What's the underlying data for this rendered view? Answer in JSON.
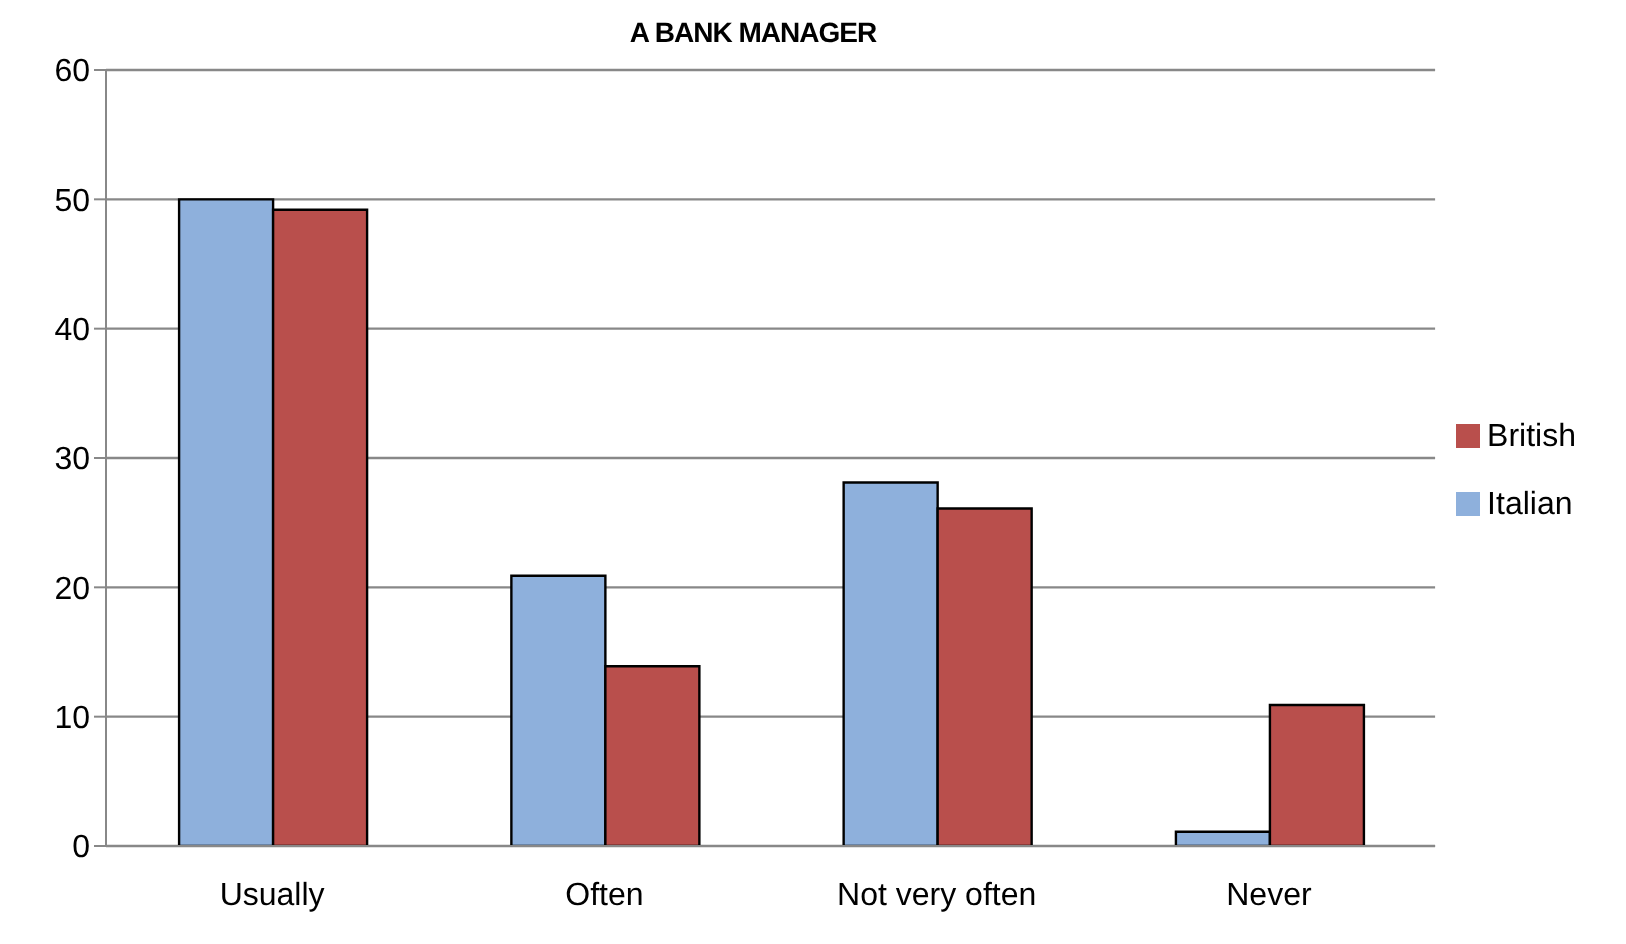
{
  "chart_data": {
    "type": "bar",
    "title": "A BANK MANAGER",
    "categories": [
      "Usually",
      "Often",
      "Not very often",
      "Never"
    ],
    "series": [
      {
        "name": "Italian",
        "color": "#8eb0dc",
        "values": [
          50,
          20.9,
          28.1,
          1.1
        ]
      },
      {
        "name": "British",
        "color": "#b94f4c",
        "values": [
          49.2,
          13.9,
          26.1,
          10.9
        ]
      }
    ],
    "ylim": [
      0,
      60
    ],
    "yticks": [
      0,
      10,
      20,
      30,
      40,
      50,
      60
    ],
    "grid": "y",
    "legend": "right"
  }
}
